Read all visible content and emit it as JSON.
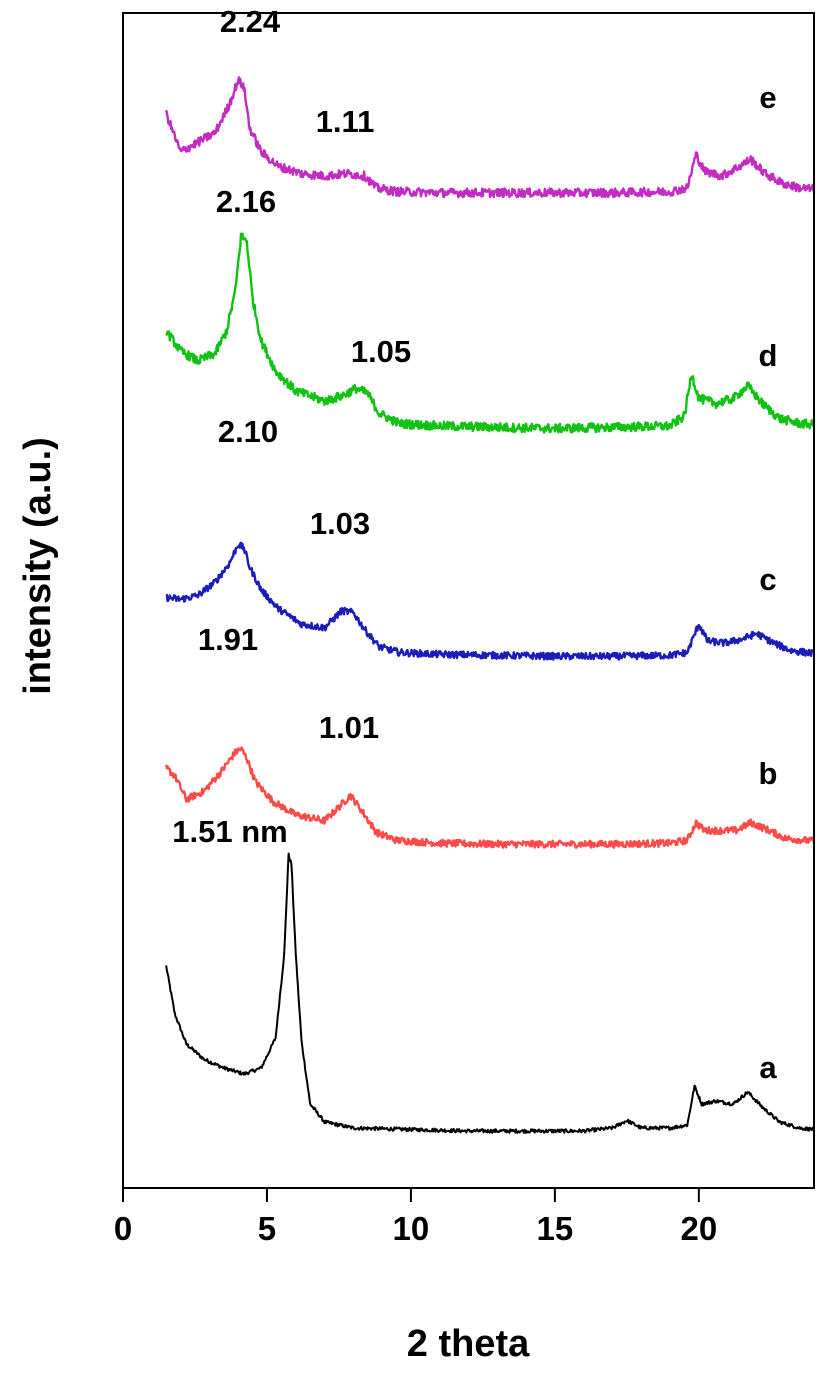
{
  "chart_data": {
    "type": "line",
    "title": "",
    "xlabel": "2 theta",
    "ylabel": "intensity (a.u.)",
    "xlim": [
      0,
      24
    ],
    "xticks": [
      0,
      5,
      10,
      15,
      20
    ],
    "xtick_labels": [
      "0",
      "5",
      "10",
      "15",
      "20"
    ],
    "y_ticks_shown": false,
    "grid": false,
    "legend": "none; series identified by letters at right end of each trace",
    "series": [
      {
        "name": "a",
        "color": "#000000",
        "x": [
          1.5,
          1.8,
          2.2,
          2.8,
          3.5,
          4.2,
          4.8,
          5.3,
          5.6,
          5.75,
          5.85,
          6.0,
          6.2,
          6.5,
          7.0,
          8,
          10,
          12,
          14,
          16,
          17,
          17.5,
          18,
          19,
          19.6,
          19.85,
          20.1,
          20.6,
          21.2,
          21.7,
          22.2,
          22.8,
          23.5,
          24
        ],
        "y_rel": [
          0.58,
          0.42,
          0.32,
          0.27,
          0.24,
          0.22,
          0.24,
          0.34,
          0.62,
          0.95,
          0.92,
          0.62,
          0.33,
          0.12,
          0.06,
          0.04,
          0.035,
          0.03,
          0.03,
          0.03,
          0.04,
          0.065,
          0.04,
          0.04,
          0.05,
          0.18,
          0.12,
          0.13,
          0.12,
          0.16,
          0.11,
          0.06,
          0.04,
          0.035
        ]
      },
      {
        "name": "b",
        "color": "#ff4a4a",
        "x": [
          1.5,
          1.8,
          2.2,
          2.8,
          3.4,
          3.9,
          4.1,
          4.3,
          4.6,
          5.2,
          6,
          7,
          7.5,
          7.9,
          8.3,
          8.8,
          9.5,
          11,
          13,
          15,
          17,
          19,
          19.6,
          19.9,
          20.2,
          20.8,
          21.3,
          21.8,
          22.3,
          23,
          24
        ],
        "y_rel": [
          0.42,
          0.38,
          0.26,
          0.3,
          0.4,
          0.5,
          0.52,
          0.47,
          0.35,
          0.25,
          0.18,
          0.15,
          0.22,
          0.28,
          0.2,
          0.09,
          0.05,
          0.035,
          0.03,
          0.03,
          0.03,
          0.035,
          0.05,
          0.14,
          0.1,
          0.1,
          0.1,
          0.14,
          0.11,
          0.06,
          0.045
        ]
      },
      {
        "name": "c",
        "color": "#1c1cb8",
        "x": [
          1.5,
          2,
          2.6,
          3.2,
          3.7,
          4.0,
          4.2,
          4.4,
          4.8,
          5.4,
          6.2,
          7,
          7.6,
          8.0,
          8.4,
          8.9,
          9.6,
          11,
          13,
          15,
          17,
          19,
          19.6,
          20.0,
          20.3,
          20.9,
          21.5,
          22.0,
          22.6,
          23.2,
          24
        ],
        "y_rel": [
          0.34,
          0.33,
          0.35,
          0.42,
          0.52,
          0.62,
          0.6,
          0.5,
          0.38,
          0.28,
          0.2,
          0.18,
          0.27,
          0.26,
          0.17,
          0.08,
          0.05,
          0.04,
          0.035,
          0.03,
          0.03,
          0.035,
          0.05,
          0.2,
          0.11,
          0.1,
          0.12,
          0.15,
          0.1,
          0.06,
          0.045
        ]
      },
      {
        "name": "d",
        "color": "#12c212",
        "x": [
          1.5,
          2,
          2.6,
          3.2,
          3.6,
          3.9,
          4.1,
          4.3,
          4.5,
          4.8,
          5.3,
          6,
          7,
          7.6,
          8.1,
          8.5,
          8.9,
          9.6,
          11,
          13,
          15,
          17,
          19,
          19.5,
          19.75,
          20.0,
          20.6,
          21.2,
          21.7,
          22.2,
          22.8,
          23.5,
          24
        ],
        "y_rel": [
          0.42,
          0.34,
          0.3,
          0.33,
          0.42,
          0.58,
          0.8,
          0.78,
          0.55,
          0.38,
          0.26,
          0.18,
          0.14,
          0.16,
          0.19,
          0.17,
          0.09,
          0.05,
          0.04,
          0.035,
          0.03,
          0.035,
          0.04,
          0.08,
          0.25,
          0.15,
          0.13,
          0.15,
          0.2,
          0.13,
          0.07,
          0.05,
          0.045
        ]
      },
      {
        "name": "e",
        "color": "#c22cc2",
        "x": [
          1.5,
          2,
          2.6,
          3.2,
          3.7,
          4.0,
          4.2,
          4.4,
          4.8,
          5.4,
          6.2,
          7,
          7.8,
          8.4,
          8.8,
          9.5,
          11,
          13,
          15,
          17,
          19,
          19.6,
          19.9,
          20.2,
          20.8,
          21.4,
          21.8,
          22.3,
          22.9,
          23.5,
          24
        ],
        "y_rel": [
          0.36,
          0.2,
          0.24,
          0.28,
          0.4,
          0.5,
          0.47,
          0.3,
          0.2,
          0.14,
          0.11,
          0.1,
          0.11,
          0.1,
          0.05,
          0.035,
          0.03,
          0.03,
          0.03,
          0.03,
          0.035,
          0.05,
          0.19,
          0.12,
          0.1,
          0.14,
          0.17,
          0.11,
          0.07,
          0.05,
          0.045
        ]
      }
    ],
    "peak_labels": [
      {
        "series": "a",
        "text": "1.51 nm",
        "x": 5.8
      },
      {
        "series": "b",
        "text": "1.91",
        "x": 4.0
      },
      {
        "series": "b",
        "text": "1.01",
        "x": 7.8
      },
      {
        "series": "c",
        "text": "2.10",
        "x": 4.1
      },
      {
        "series": "c",
        "text": "1.03",
        "x": 7.6
      },
      {
        "series": "d",
        "text": "2.16",
        "x": 4.2
      },
      {
        "series": "d",
        "text": "1.05",
        "x": 8.3
      },
      {
        "series": "e",
        "text": "2.24",
        "x": 4.1
      },
      {
        "series": "e",
        "text": "1.11",
        "x": 8.0
      }
    ]
  }
}
